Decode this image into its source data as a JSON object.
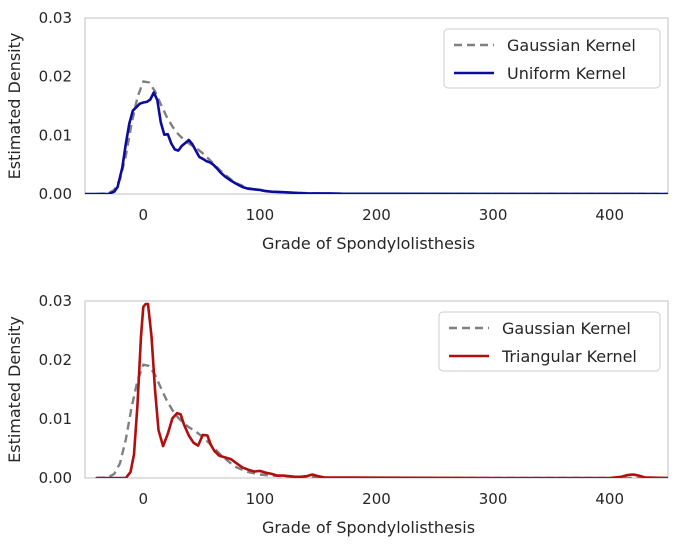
{
  "chart_data": [
    {
      "type": "line",
      "title": "",
      "xlabel": "Grade of Spondylolisthesis",
      "ylabel": "Estimated Density",
      "xlim": [
        -50,
        450
      ],
      "ylim": [
        0,
        0.03
      ],
      "xticks": [
        0,
        100,
        200,
        300,
        400
      ],
      "xtick_labels": [
        "0",
        "100",
        "200",
        "300",
        "400"
      ],
      "yticks": [
        0,
        0.01,
        0.02,
        0.03
      ],
      "ytick_labels": [
        "0.00",
        "0.01",
        "0.02",
        "0.03"
      ],
      "grid": false,
      "legend_position": "top-right",
      "series": [
        {
          "name": "Gaussian Kernel",
          "color": "#808080",
          "style": "dashed",
          "x": [
            -40,
            -30,
            -25,
            -20,
            -15,
            -10,
            -5,
            0,
            5,
            10,
            15,
            20,
            25,
            30,
            35,
            40,
            45,
            50,
            55,
            60,
            65,
            70,
            75,
            80,
            90,
            100,
            110,
            120,
            130,
            140,
            150,
            160,
            200,
            300,
            400,
            450
          ],
          "y": [
            0,
            0.0001,
            0.0007,
            0.0025,
            0.0065,
            0.012,
            0.0165,
            0.0192,
            0.019,
            0.0175,
            0.0153,
            0.0132,
            0.0115,
            0.0102,
            0.0092,
            0.0085,
            0.0079,
            0.0071,
            0.0062,
            0.0052,
            0.0042,
            0.0033,
            0.0025,
            0.0018,
            0.001,
            0.0006,
            0.0004,
            0.0003,
            0.0002,
            0.00015,
            0.0001,
            5e-05,
            2e-05,
            1e-05,
            1e-05,
            0
          ]
        },
        {
          "name": "Uniform Kernel",
          "color": "#0b0b9e",
          "style": "solid",
          "x": [
            -50,
            -30,
            -25,
            -22,
            -18,
            -15,
            -12,
            -9,
            -6,
            -3,
            0,
            3,
            6,
            9,
            12,
            15,
            18,
            21,
            24,
            27,
            30,
            33,
            36,
            39,
            42,
            45,
            48,
            51,
            54,
            57,
            60,
            63,
            66,
            70,
            75,
            80,
            85,
            90,
            95,
            100,
            105,
            110,
            120,
            130,
            140,
            150,
            160,
            170,
            200,
            300,
            400,
            450
          ],
          "y": [
            0,
            0,
            0.0004,
            0.0012,
            0.0045,
            0.0085,
            0.012,
            0.0142,
            0.0148,
            0.0154,
            0.0156,
            0.0157,
            0.0161,
            0.0173,
            0.016,
            0.0122,
            0.0101,
            0.0102,
            0.0086,
            0.0076,
            0.0074,
            0.0082,
            0.0087,
            0.0092,
            0.0085,
            0.0074,
            0.0063,
            0.006,
            0.0056,
            0.0054,
            0.005,
            0.0044,
            0.0037,
            0.003,
            0.0023,
            0.0017,
            0.0012,
            0.0009,
            0.0008,
            0.0007,
            0.0005,
            0.0004,
            0.0003,
            0.0002,
            0.0001,
            0.0001,
            0.0001,
            5e-05,
            3e-05,
            2e-05,
            2e-05,
            0
          ]
        }
      ]
    },
    {
      "type": "line",
      "title": "",
      "xlabel": "Grade of Spondylolisthesis",
      "ylabel": "Estimated Density",
      "xlim": [
        -50,
        450
      ],
      "ylim": [
        0,
        0.03
      ],
      "xticks": [
        0,
        100,
        200,
        300,
        400
      ],
      "xtick_labels": [
        "0",
        "100",
        "200",
        "300",
        "400"
      ],
      "yticks": [
        0,
        0.01,
        0.02,
        0.03
      ],
      "ytick_labels": [
        "0.00",
        "0.01",
        "0.02",
        "0.03"
      ],
      "grid": false,
      "legend_position": "top-right",
      "series": [
        {
          "name": "Gaussian Kernel",
          "color": "#808080",
          "style": "dashed",
          "x": [
            -40,
            -30,
            -25,
            -20,
            -15,
            -10,
            -5,
            0,
            5,
            10,
            15,
            20,
            25,
            30,
            35,
            40,
            45,
            50,
            55,
            60,
            65,
            70,
            75,
            80,
            90,
            100,
            110,
            120,
            130,
            140,
            150,
            160,
            200,
            300,
            400,
            450
          ],
          "y": [
            0,
            0.0001,
            0.0007,
            0.0025,
            0.0065,
            0.012,
            0.0165,
            0.0192,
            0.019,
            0.0175,
            0.0153,
            0.0132,
            0.0115,
            0.0102,
            0.0092,
            0.0085,
            0.0079,
            0.0071,
            0.0062,
            0.0052,
            0.0042,
            0.0033,
            0.0025,
            0.0018,
            0.001,
            0.0006,
            0.0004,
            0.0003,
            0.0002,
            0.00015,
            0.0001,
            5e-05,
            2e-05,
            1e-05,
            1e-05,
            0
          ]
        },
        {
          "name": "Triangular Kernel",
          "color": "#b20e0e",
          "style": "solid",
          "x": [
            -40,
            -15,
            -11,
            -8,
            -5,
            -2,
            0,
            2,
            4,
            7,
            10,
            13,
            17,
            21,
            25,
            29,
            32,
            35,
            39,
            43,
            47,
            51,
            55,
            58,
            61,
            65,
            70,
            75,
            80,
            85,
            90,
            95,
            100,
            105,
            110,
            115,
            120,
            125,
            130,
            135,
            140,
            145,
            150,
            155,
            200,
            300,
            400,
            410,
            415,
            420,
            425,
            430,
            450
          ],
          "y": [
            0,
            0,
            0.001,
            0.004,
            0.0125,
            0.024,
            0.029,
            0.0295,
            0.0295,
            0.024,
            0.015,
            0.0081,
            0.0054,
            0.0075,
            0.0101,
            0.011,
            0.0108,
            0.009,
            0.0072,
            0.006,
            0.0055,
            0.0073,
            0.0072,
            0.0056,
            0.0046,
            0.0038,
            0.0035,
            0.0032,
            0.0025,
            0.0018,
            0.0014,
            0.0011,
            0.0012,
            0.0009,
            0.0007,
            0.0004,
            0.0004,
            0.0003,
            0.0002,
            0.0002,
            0.0003,
            0.0006,
            0.0003,
            0.0001,
            5e-05,
            0,
            0,
            0.0002,
            0.0005,
            0.0006,
            0.0004,
            0.0001,
            0
          ]
        }
      ]
    }
  ]
}
